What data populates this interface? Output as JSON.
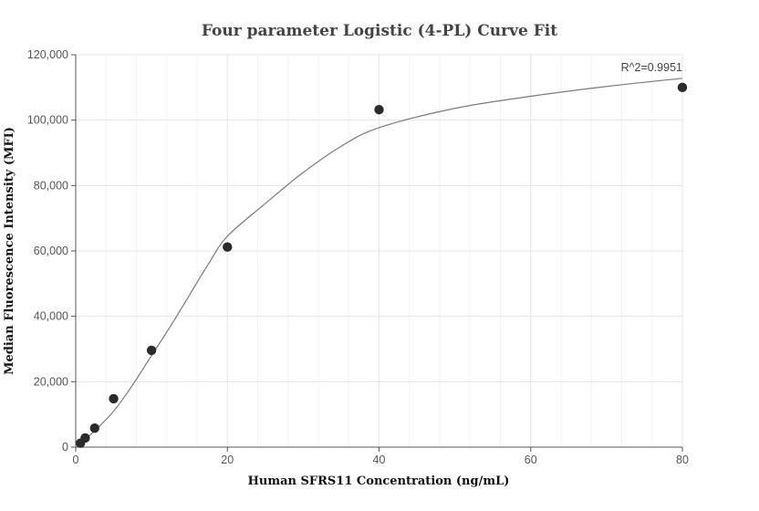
{
  "chart_data": {
    "type": "scatter",
    "title": "Four parameter Logistic (4-PL) Curve Fit",
    "xlabel": "Human SFRS11 Concentration (ng/mL)",
    "ylabel": "Median Fluorescence Intensity (MFI)",
    "xlim": [
      0,
      80
    ],
    "ylim": [
      0,
      120000
    ],
    "x_ticks": [
      0,
      20,
      40,
      60,
      80
    ],
    "x_tick_labels": [
      "0",
      "20",
      "40",
      "60",
      "80"
    ],
    "y_ticks": [
      0,
      20000,
      40000,
      60000,
      80000,
      100000,
      120000
    ],
    "y_tick_labels": [
      "0",
      "20,000",
      "40,000",
      "60,000",
      "80,000",
      "100,000",
      "120,000"
    ],
    "grid": true,
    "points": [
      {
        "x": 0.625,
        "y": 1200
      },
      {
        "x": 1.25,
        "y": 2800
      },
      {
        "x": 2.5,
        "y": 5800
      },
      {
        "x": 5,
        "y": 14800
      },
      {
        "x": 10,
        "y": 29600
      },
      {
        "x": 20,
        "y": 61200
      },
      {
        "x": 40,
        "y": 103200
      },
      {
        "x": 80,
        "y": 110000
      }
    ],
    "fit_curve": [
      {
        "x": 0.625,
        "y": 1100
      },
      {
        "x": 1.25,
        "y": 2400
      },
      {
        "x": 2.5,
        "y": 5000
      },
      {
        "x": 5,
        "y": 11000
      },
      {
        "x": 7.5,
        "y": 19000
      },
      {
        "x": 10,
        "y": 28000
      },
      {
        "x": 12.5,
        "y": 37000
      },
      {
        "x": 15,
        "y": 46500
      },
      {
        "x": 17.5,
        "y": 56000
      },
      {
        "x": 20,
        "y": 64500
      },
      {
        "x": 25,
        "y": 74500
      },
      {
        "x": 30,
        "y": 84000
      },
      {
        "x": 35,
        "y": 92000
      },
      {
        "x": 40,
        "y": 97700
      },
      {
        "x": 50,
        "y": 103600
      },
      {
        "x": 60,
        "y": 107300
      },
      {
        "x": 70,
        "y": 110300
      },
      {
        "x": 80,
        "y": 112800
      }
    ],
    "annotation": "R^2=0.9951"
  }
}
